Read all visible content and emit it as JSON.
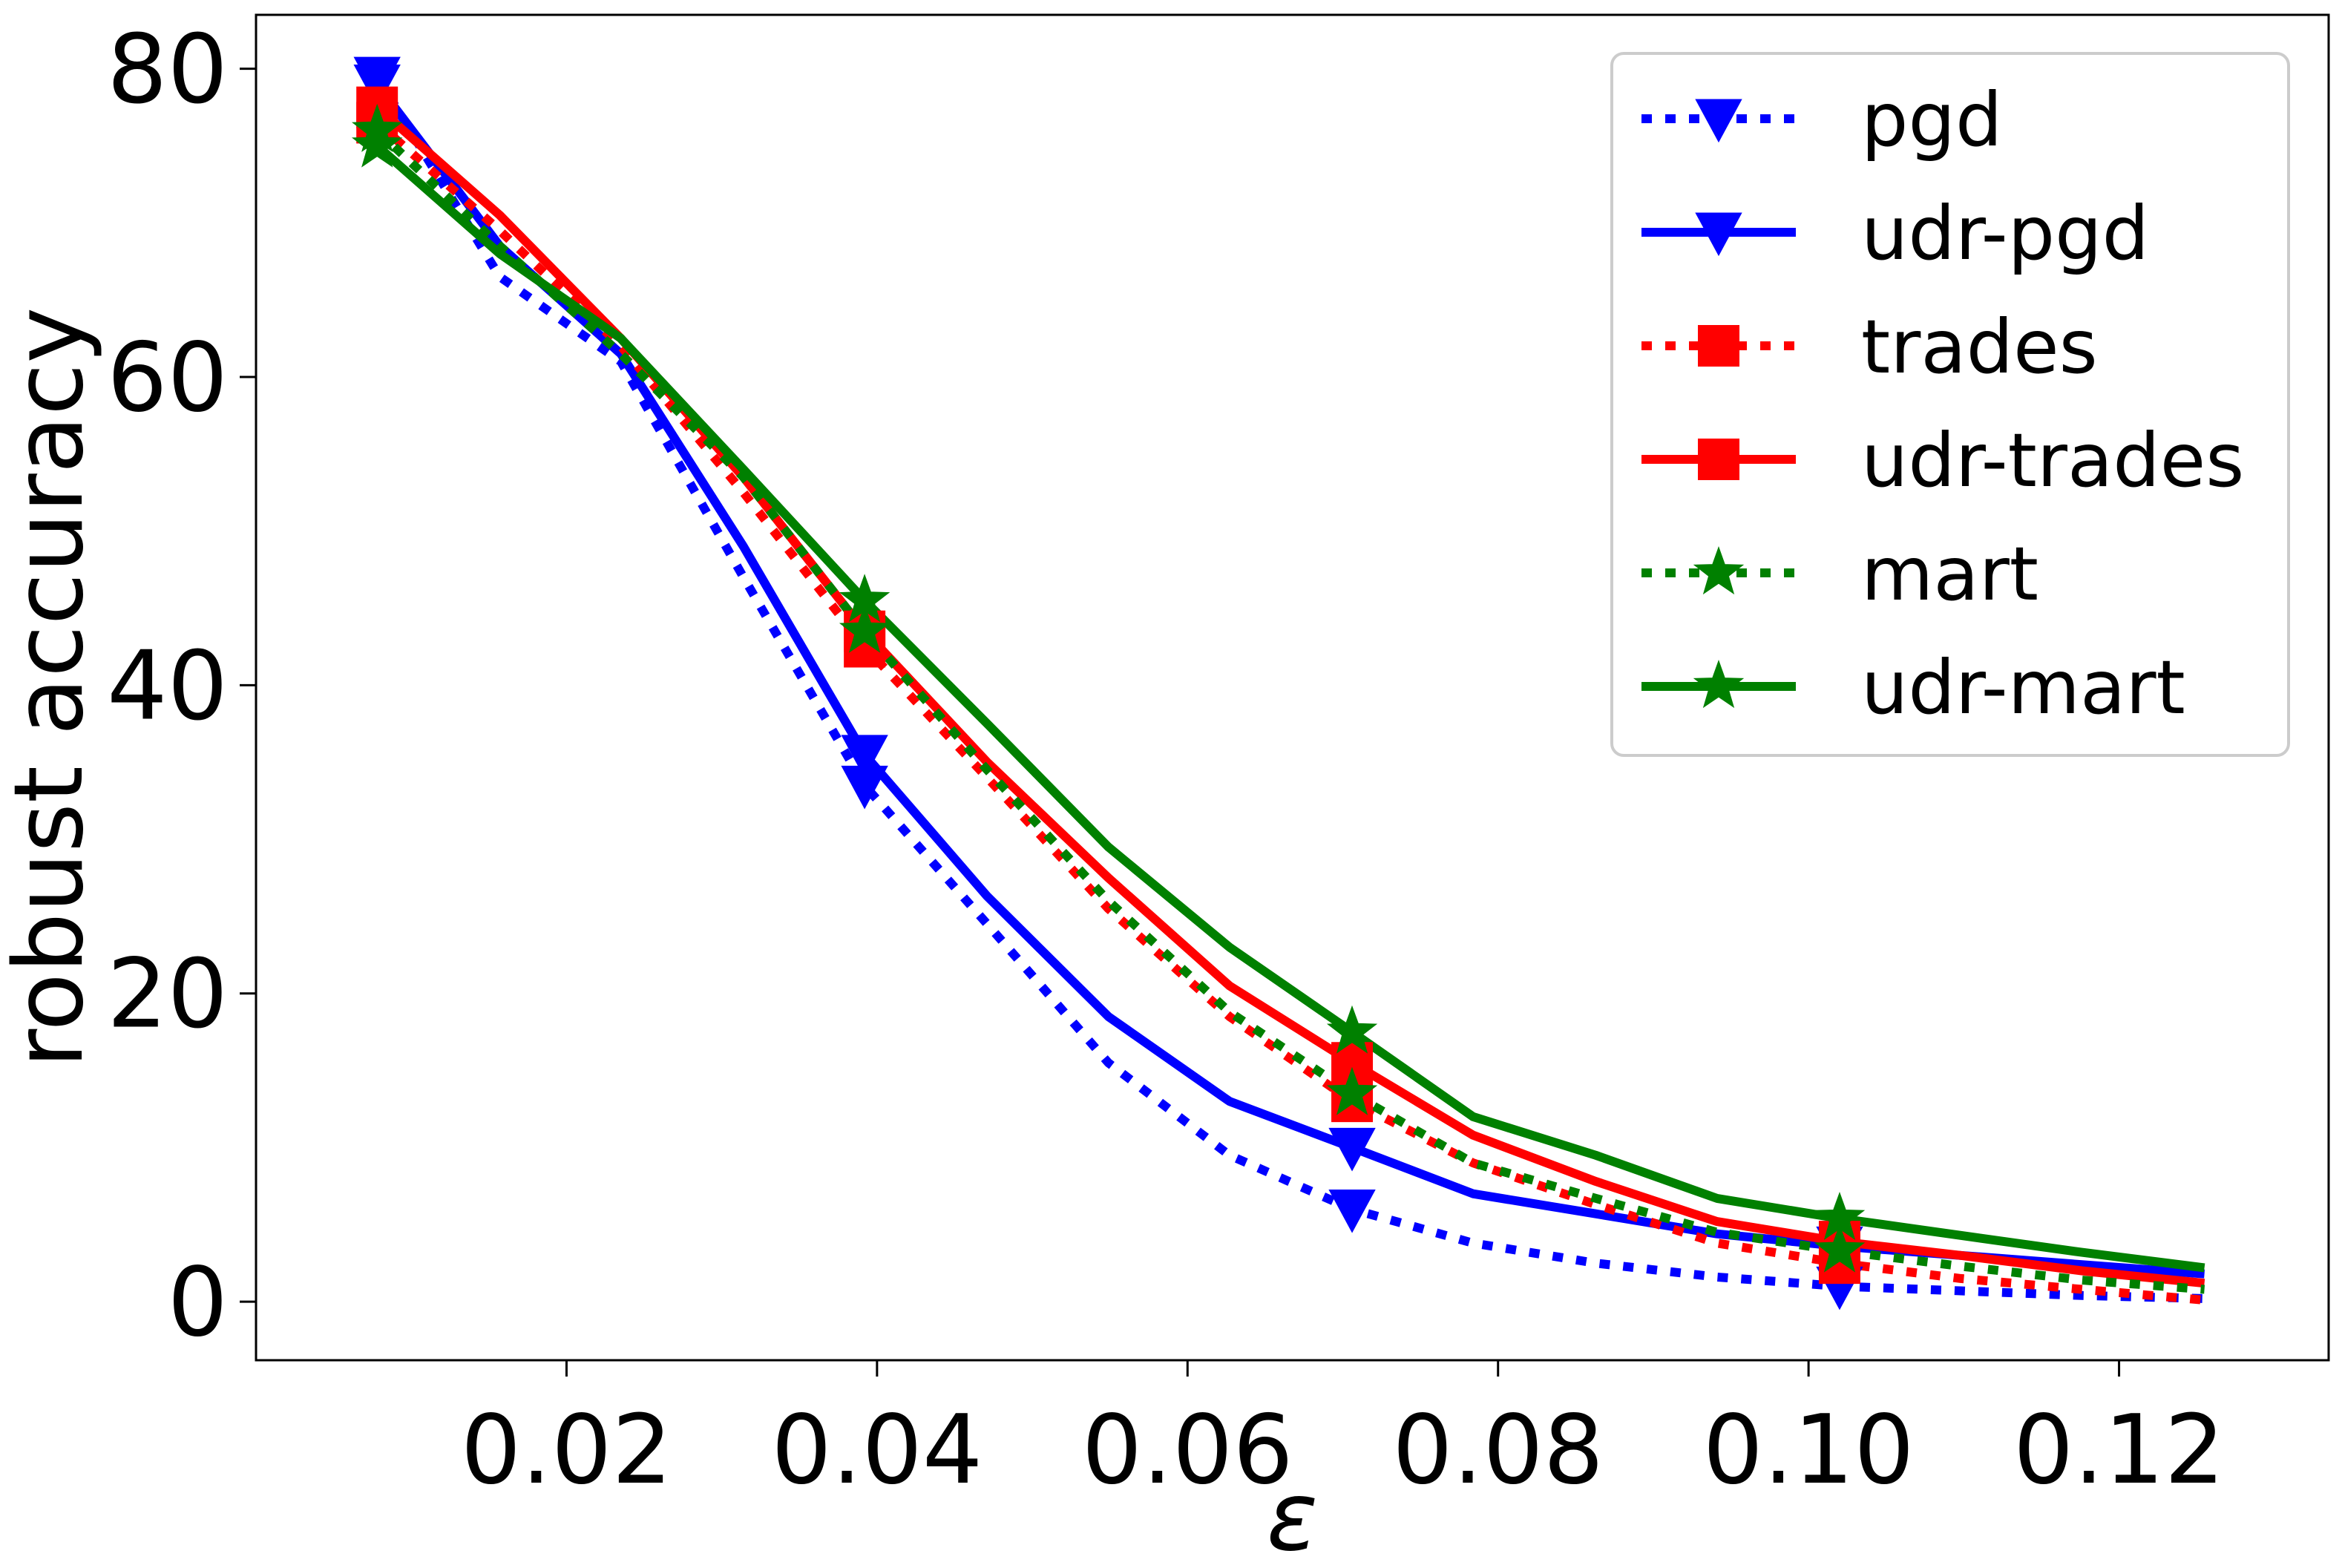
{
  "chart_data": {
    "type": "line",
    "xlabel": "ε",
    "ylabel": "robust accuracy",
    "xlim": [
      0.0,
      0.1335
    ],
    "ylim": [
      -3.8,
      83.5
    ],
    "x_ticks": [
      0.02,
      0.04,
      0.06,
      0.08,
      0.1,
      0.12
    ],
    "x_tick_labels": [
      "0.02",
      "0.04",
      "0.06",
      "0.08",
      "0.10",
      "0.12"
    ],
    "y_ticks": [
      0,
      20,
      40,
      60,
      80
    ],
    "y_tick_labels": [
      "0",
      "20",
      "40",
      "60",
      "80"
    ],
    "grid": false,
    "legend_position": "top-right",
    "x": [
      0.0078,
      0.0157,
      0.0235,
      0.0314,
      0.0392,
      0.0471,
      0.0549,
      0.0627,
      0.0706,
      0.0784,
      0.0863,
      0.0941,
      0.102,
      0.1098,
      0.1176,
      0.1255
    ],
    "series": [
      {
        "name": "pgd",
        "color": "#0000ff",
        "dash": "dotted",
        "marker": "triangle-down",
        "marker_every": 4,
        "values": [
          79.5,
          66.5,
          61.0,
          47.0,
          33.5,
          24.5,
          15.5,
          9.5,
          6.0,
          3.8,
          2.5,
          1.6,
          1.0,
          0.7,
          0.4,
          0.2
        ]
      },
      {
        "name": "udr-pgd",
        "color": "#0000ff",
        "dash": "solid",
        "marker": "triangle-down",
        "marker_every": 4,
        "values": [
          79.0,
          68.5,
          61.5,
          49.0,
          35.5,
          26.3,
          18.5,
          13.0,
          10.0,
          7.0,
          5.7,
          4.4,
          3.6,
          3.0,
          2.4,
          1.8
        ]
      },
      {
        "name": "trades",
        "color": "#ff0000",
        "dash": "dotted",
        "marker": "square",
        "marker_every": 4,
        "values": [
          76.5,
          69.5,
          62.0,
          52.5,
          42.5,
          34.0,
          25.5,
          18.5,
          13.0,
          9.0,
          6.3,
          3.8,
          2.5,
          1.5,
          0.8,
          0.1
        ]
      },
      {
        "name": "udr-trades",
        "color": "#ff0000",
        "dash": "solid",
        "marker": "square",
        "marker_every": 4,
        "values": [
          77.5,
          70.5,
          62.5,
          53.5,
          43.5,
          35.0,
          27.5,
          20.5,
          15.5,
          10.8,
          7.8,
          5.2,
          3.9,
          3.0,
          2.0,
          1.2
        ]
      },
      {
        "name": "mart",
        "color": "#008000",
        "dash": "dotted",
        "marker": "star",
        "marker_every": 4,
        "values": [
          76.0,
          68.5,
          61.5,
          53.5,
          43.5,
          34.5,
          26.0,
          18.8,
          13.5,
          9.0,
          6.7,
          4.5,
          3.3,
          2.3,
          1.4,
          0.8
        ]
      },
      {
        "name": "udr-mart",
        "color": "#008000",
        "dash": "solid",
        "marker": "star",
        "marker_every": 4,
        "values": [
          75.0,
          68.0,
          62.5,
          54.0,
          45.5,
          37.5,
          29.5,
          23.0,
          17.5,
          12.0,
          9.5,
          6.7,
          5.4,
          4.3,
          3.2,
          2.2
        ]
      }
    ]
  }
}
